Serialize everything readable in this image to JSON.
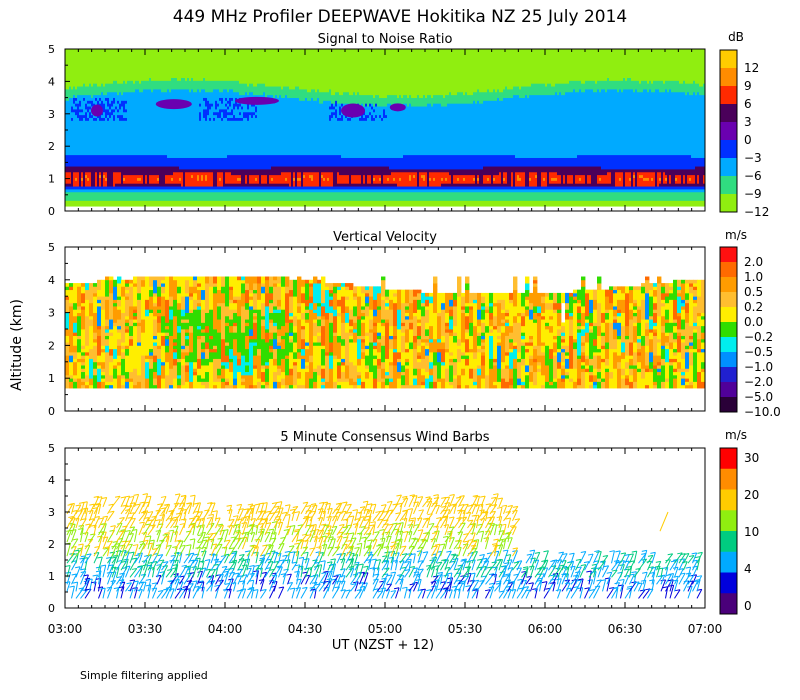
{
  "title": "449 MHz Profiler DEEPWAVE Hokitika NZ 25 July 2014",
  "ylabel": "Altitude (km)",
  "xlabel": "UT  (NZST + 12)",
  "footnote": "Simple filtering applied",
  "xticks": [
    "03:00",
    "03:30",
    "04:00",
    "04:30",
    "05:00",
    "05:30",
    "06:00",
    "06:30",
    "07:00"
  ],
  "chart_data": [
    {
      "type": "heatmap",
      "title": "Signal to Noise Ratio",
      "ylabel": "Altitude (km)",
      "ylim": [
        0,
        5
      ],
      "yticks": [
        "0",
        "1",
        "2",
        "3",
        "4",
        "5"
      ],
      "xlim": [
        "03:00",
        "07:00"
      ],
      "colorbar_unit": "dB",
      "colorbar_labels": [
        "12",
        "9",
        "6",
        "3",
        "0",
        "−3",
        "−6",
        "−9",
        "−12"
      ],
      "colorbar_colors": [
        "#ffcc00",
        "#ff8c00",
        "#ff2a00",
        "#4a005a",
        "#6a00b0",
        "#0030ff",
        "#00aaff",
        "#30dd80",
        "#90ee10"
      ]
    },
    {
      "type": "heatmap",
      "title": "Vertical Velocity",
      "ylabel": "Altitude (km)",
      "ylim": [
        0,
        5
      ],
      "yticks": [
        "0",
        "1",
        "2",
        "3",
        "4",
        "5"
      ],
      "xlim": [
        "03:00",
        "07:00"
      ],
      "colorbar_unit": "m/s",
      "colorbar_labels": [
        "2.0",
        "1.0",
        "0.5",
        "0.2",
        "0.0",
        "−0.2",
        "−0.5",
        "−1.0",
        "−2.0",
        "−5.0",
        "−10.0"
      ],
      "colorbar_colors": [
        "#ff1010",
        "#ff6a00",
        "#ff9c00",
        "#ffbe30",
        "#ffee00",
        "#30dd00",
        "#00eeee",
        "#0090ff",
        "#2020d0",
        "#50009a",
        "#2a0038"
      ]
    },
    {
      "type": "scatter",
      "title": "5 Minute Consensus Wind Barbs",
      "ylabel": "Altitude (km)",
      "ylim": [
        0,
        5
      ],
      "yticks": [
        "0",
        "1",
        "2",
        "3",
        "4",
        "5"
      ],
      "xlim": [
        "03:00",
        "07:00"
      ],
      "colorbar_unit": "m/s",
      "colorbar_labels": [
        "30",
        "20",
        "10",
        "4",
        "0"
      ],
      "colorbar_colors": [
        "#ff0000",
        "#ff8c00",
        "#ffcc00",
        "#90ee10",
        "#00cc80",
        "#00aaff",
        "#0000dd",
        "#4a007a"
      ]
    }
  ]
}
